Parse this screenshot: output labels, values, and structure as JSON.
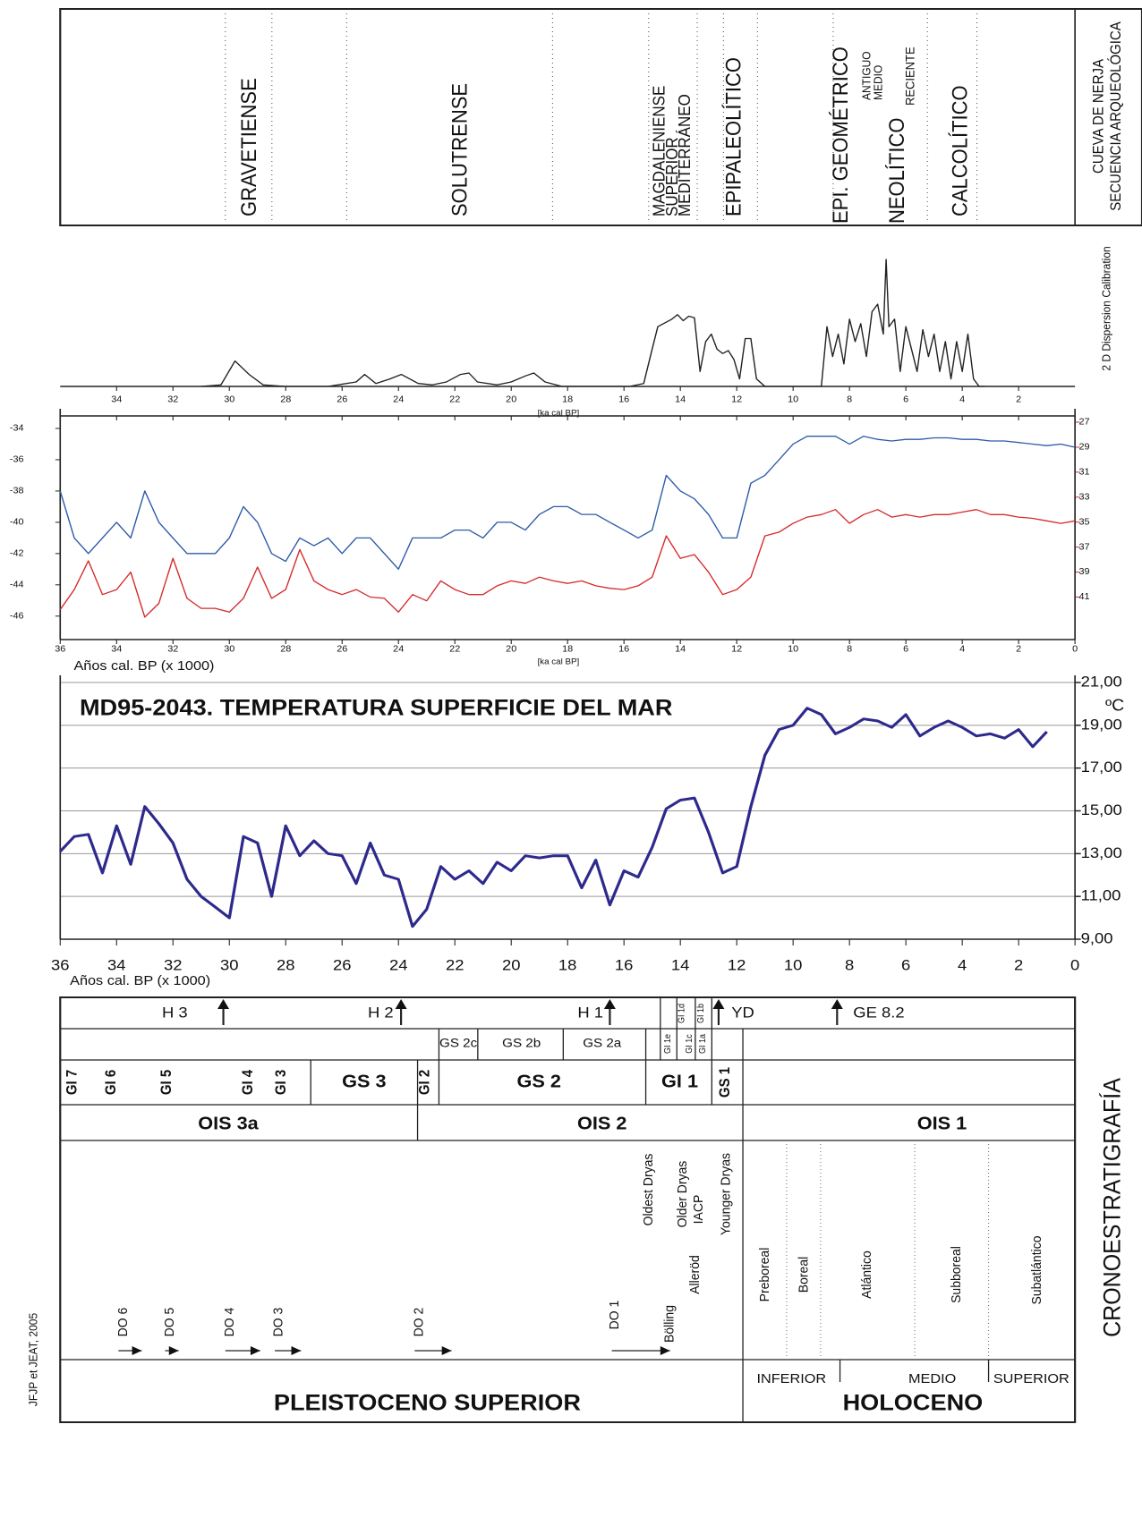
{
  "credit": "JFJP et JEAT, 2005",
  "archaeology": {
    "title": [
      "CUEVA DE NERJA",
      "SECUENCIA ARQUEOLÓGICA"
    ],
    "periods": [
      "GRAVETIENSE",
      "SOLUTRENSE",
      "MAGDALENIENSE",
      "SUPERIOR",
      "MEDITERRÁNEO",
      "EPIPALEOLÍTICO",
      "EPI. GEOMÉTRICO",
      "ANTIGUO",
      "MEDIO",
      "NEOLÍTICO",
      "RECIENTE",
      "CALCOLÍTICO"
    ]
  },
  "chart_data": [
    {
      "type": "line",
      "label": "2 D Dispersion Calibration",
      "x_label": "[ka cal BP]",
      "color": "#222222",
      "x": [
        31,
        30.3,
        29.8,
        29.3,
        28.8,
        28,
        26.5,
        25.5,
        25.2,
        24.8,
        24.3,
        23.9,
        23.3,
        22.8,
        22.3,
        21.8,
        21.5,
        21.2,
        20.5,
        20,
        19.5,
        19.2,
        18.8,
        18.2,
        15.8,
        15.3,
        15,
        14.8,
        14.6,
        14.3,
        14.1,
        13.9,
        13.7,
        13.5,
        13.3,
        13.1,
        12.9,
        12.7,
        12.5,
        12.3,
        12.1,
        11.9,
        11.7,
        11.5,
        11.3,
        11,
        9,
        8.8,
        8.6,
        8.4,
        8.2,
        8,
        7.8,
        7.6,
        7.4,
        7.2,
        7,
        6.8,
        6.7,
        6.6,
        6.4,
        6.2,
        6,
        5.8,
        5.6,
        5.4,
        5.2,
        5,
        4.8,
        4.6,
        4.4,
        4.2,
        4,
        3.8,
        3.6,
        3.4,
        3.2
      ],
      "values": [
        0,
        1,
        17,
        8,
        1,
        0,
        0,
        3,
        8,
        2,
        5,
        8,
        2,
        1,
        3,
        8,
        9,
        3,
        1,
        3,
        7,
        9,
        3,
        0,
        0,
        2,
        25,
        40,
        42,
        45,
        48,
        44,
        47,
        46,
        10,
        30,
        35,
        25,
        22,
        24,
        18,
        5,
        32,
        32,
        5,
        0,
        0,
        40,
        20,
        35,
        15,
        45,
        30,
        42,
        20,
        50,
        55,
        35,
        85,
        40,
        45,
        10,
        40,
        25,
        10,
        38,
        20,
        35,
        10,
        30,
        5,
        30,
        10,
        35,
        5,
        0,
        0
      ],
      "xlim": [
        36,
        0
      ],
      "xticks": [
        34,
        32,
        30,
        28,
        26,
        24,
        22,
        20,
        18,
        16,
        14,
        12,
        10,
        8,
        6,
        4,
        2
      ]
    },
    {
      "type": "line",
      "x_label": "[ka cal BP]",
      "x_title": "Años cal. BP (x 1000)",
      "x": [
        36,
        35.5,
        35,
        34.5,
        34,
        33.5,
        33,
        32.5,
        32,
        31.5,
        31,
        30.5,
        30,
        29.5,
        29,
        28.5,
        28,
        27.5,
        27,
        26.5,
        26,
        25.5,
        25,
        24.5,
        24,
        23.5,
        23,
        22.5,
        22,
        21.5,
        21,
        20.5,
        20,
        19.5,
        19,
        18.5,
        18,
        17.5,
        17,
        16.5,
        16,
        15.5,
        15,
        14.5,
        14,
        13.5,
        13,
        12.5,
        12,
        11.5,
        11,
        10.5,
        10,
        9.5,
        9,
        8.5,
        8,
        7.5,
        7,
        6.5,
        6,
        5.5,
        5,
        4.5,
        4,
        3.5,
        3,
        2.5,
        2,
        1.5,
        1,
        0.5,
        0
      ],
      "series": [
        {
          "color": "#2d5ba8",
          "values": [
            -38,
            -41,
            -42,
            -41,
            -40,
            -41,
            -38,
            -40,
            -41,
            -42,
            -42,
            -42,
            -41,
            -39,
            -40,
            -42,
            -42.5,
            -41,
            -41.5,
            -41,
            -42,
            -41,
            -41,
            -42,
            -43,
            -41,
            -41,
            -41,
            -40.5,
            -40.5,
            -41,
            -40,
            -40,
            -40.5,
            -39.5,
            -39,
            -39,
            -39.5,
            -39.5,
            -40,
            -40.5,
            -41,
            -40.5,
            -37,
            -38,
            -38.5,
            -39.5,
            -41,
            -41,
            -37.5,
            -37,
            -36,
            -35,
            -34.5,
            -34.5,
            -34.5,
            -35,
            -34.5,
            -34.7,
            -34.8,
            -34.7,
            -34.7,
            -34.6,
            -34.6,
            -34.7,
            -34.7,
            -34.8,
            -34.8,
            -34.9,
            -35,
            -35.1,
            -35,
            -35.2
          ]
        },
        {
          "color": "#d62b2b",
          "axis": "y2",
          "values": [
            42.0,
            40.4,
            38.1,
            40.8,
            40.4,
            39.0,
            42.6,
            41.5,
            37.9,
            41.1,
            41.9,
            41.9,
            42.2,
            41.1,
            38.6,
            41.1,
            40.4,
            37.2,
            39.7,
            40.4,
            40.8,
            40.4,
            41.0,
            41.1,
            42.2,
            40.8,
            41.3,
            39.7,
            40.4,
            40.8,
            40.8,
            40.1,
            39.7,
            39.9,
            39.4,
            39.7,
            39.9,
            39.7,
            40.1,
            40.3,
            40.4,
            40.1,
            39.4,
            36.1,
            37.9,
            37.6,
            39.0,
            40.8,
            40.4,
            39.4,
            36.1,
            35.8,
            35.1,
            34.6,
            34.4,
            34.0,
            35.1,
            34.4,
            34.0,
            34.6,
            34.4,
            34.6,
            34.4,
            34.4,
            34.2,
            34.0,
            34.4,
            34.4,
            34.6,
            34.7,
            34.9,
            35.1,
            34.9
          ]
        }
      ],
      "xlim": [
        36,
        0
      ],
      "xticks": [
        36,
        34,
        32,
        30,
        28,
        26,
        24,
        22,
        20,
        18,
        16,
        14,
        12,
        10,
        8,
        6,
        4,
        2,
        0
      ],
      "ylim": [
        -47.5,
        -33.2
      ],
      "yticks": [
        -34,
        -36,
        -38,
        -40,
        -42,
        -44,
        -46
      ],
      "y2lim": [
        44.4,
        26.5
      ],
      "y2ticks": [
        27,
        29,
        31,
        33,
        35,
        37,
        39,
        41
      ]
    },
    {
      "type": "line",
      "title": "MD95-2043. TEMPERATURA SUPERFICIE DEL MAR",
      "y_unit": "ºC",
      "x_title": "Años cal. BP (x 1000)",
      "color": "#2e2a8c",
      "x": [
        36,
        35.5,
        35,
        34.5,
        34,
        33.5,
        33,
        32.5,
        32,
        31.5,
        31,
        30.5,
        30,
        29.5,
        29,
        28.5,
        28,
        27.5,
        27,
        26.5,
        26,
        25.5,
        25,
        24.5,
        24,
        23.5,
        23,
        22.5,
        22,
        21.5,
        21,
        20.5,
        20,
        19.5,
        19,
        18.5,
        18,
        17.5,
        17,
        16.5,
        16,
        15.5,
        15,
        14.5,
        14,
        13.5,
        13,
        12.5,
        12,
        11.5,
        11,
        10.5,
        10,
        9.5,
        9,
        8.5,
        8,
        7.5,
        7,
        6.5,
        6,
        5.5,
        5,
        4.5,
        4,
        3.5,
        3,
        2.5,
        2,
        1.5,
        1
      ],
      "values": [
        13.1,
        13.8,
        13.9,
        12.1,
        14.3,
        12.5,
        15.2,
        14.4,
        13.5,
        11.8,
        11.0,
        10.5,
        10.0,
        13.8,
        13.5,
        11.0,
        14.3,
        12.9,
        13.6,
        13.0,
        12.9,
        11.6,
        13.5,
        12.0,
        11.8,
        9.6,
        10.4,
        12.4,
        11.8,
        12.2,
        11.6,
        12.6,
        12.2,
        12.9,
        12.8,
        12.9,
        12.9,
        11.4,
        12.7,
        10.6,
        12.2,
        11.9,
        13.3,
        15.1,
        15.5,
        15.6,
        14.0,
        12.1,
        12.4,
        15.2,
        17.6,
        18.8,
        19.0,
        19.8,
        19.5,
        18.6,
        18.9,
        19.3,
        19.2,
        18.9,
        19.5,
        18.5,
        18.9,
        19.2,
        18.9,
        18.5,
        18.6,
        18.4,
        18.8,
        18.0,
        18.7
      ],
      "xlim": [
        36,
        0
      ],
      "xticks": [
        36,
        34,
        32,
        30,
        28,
        26,
        24,
        22,
        20,
        18,
        16,
        14,
        12,
        10,
        8,
        6,
        4,
        2,
        0
      ],
      "ylim": [
        9,
        21
      ],
      "yticks": [
        {
          "value": 9,
          "label": "9,00"
        },
        {
          "value": 11,
          "label": "11,00"
        },
        {
          "value": 13,
          "label": "13,00"
        },
        {
          "value": 15,
          "label": "15,00"
        },
        {
          "value": 17,
          "label": "17,00"
        },
        {
          "value": 19,
          "label": "19,00"
        },
        {
          "value": 21,
          "label": "21,00"
        }
      ],
      "grid": true
    }
  ],
  "chronostratigraphy": {
    "title": "CRONOESTRATIGRAFÍA",
    "events": [
      "H 3",
      "H 2",
      "H 1",
      "YD",
      "GE 8.2"
    ],
    "stadials_sub": [
      "GS 2c",
      "GS 2b",
      "GS 2a",
      "GI 1e",
      "GI 1d",
      "GI 1c",
      "GI 1b",
      "GI 1a"
    ],
    "stadials": [
      "GI 7",
      "GI 6",
      "GI 5",
      "GI 4",
      "GI 3",
      "GS 3",
      "GI 2",
      "GS 2",
      "GI 1",
      "GS 1"
    ],
    "ois": [
      "OIS 3a",
      "OIS 2",
      "OIS 1"
    ],
    "phases": [
      "DO 6",
      "DO 5",
      "DO 4",
      "DO 3",
      "DO 2",
      "DO 1",
      "Oldest Dryas",
      "Bölling",
      "Older Dryas",
      "Alleröd",
      "IACP",
      "Younger Dryas",
      "Preboreal",
      "Boreal",
      "Atlántico",
      "Subboreal",
      "Subatlántico"
    ],
    "holocene_parts": [
      "INFERIOR",
      "MEDIO",
      "SUPERIOR"
    ],
    "epochs": [
      "PLEISTOCENO SUPERIOR",
      "HOLOCENO"
    ]
  }
}
